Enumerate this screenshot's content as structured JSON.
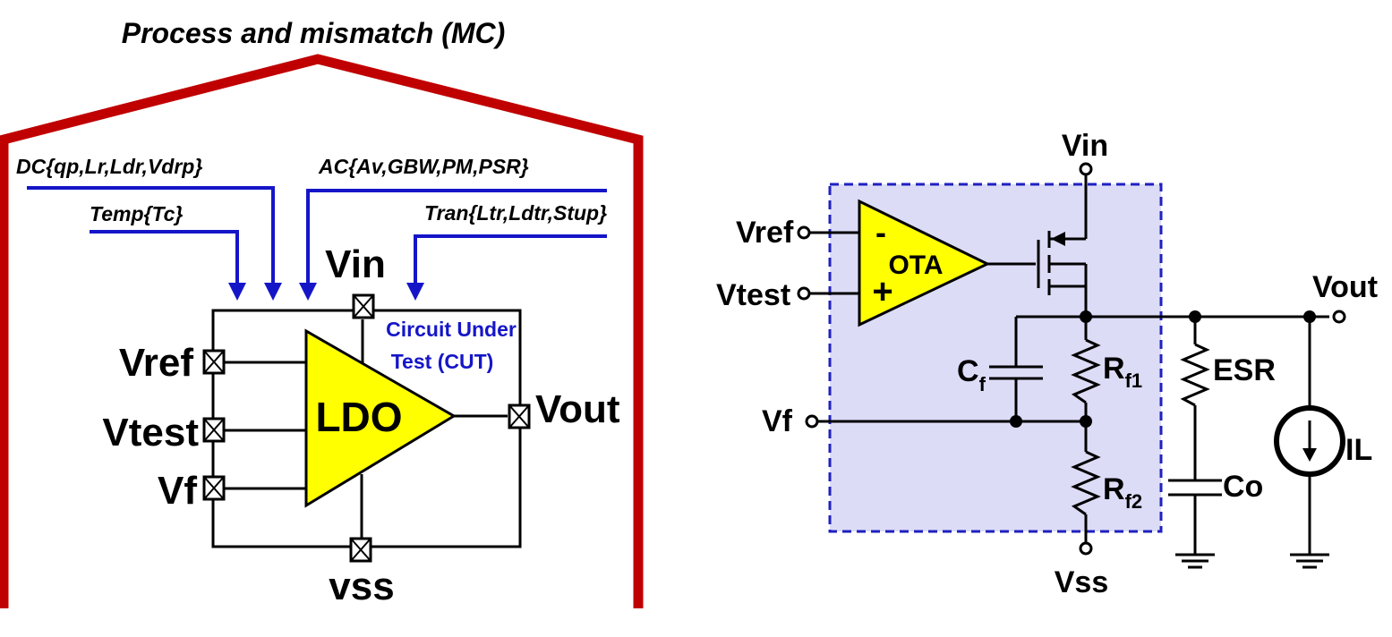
{
  "left_panel": {
    "title": "Process and mismatch (MC)",
    "dc_label": "DC{qp,Lr,Ldr,Vdrp}",
    "temp_label": "Temp{Tc}",
    "ac_label": "AC{Av,GBW,PM,PSR}",
    "tran_label": "Tran{Ltr,Ldtr,Stup}",
    "cut_label_line1": "Circuit Under",
    "cut_label_line2": "Test (CUT)",
    "ldo_label": "LDO",
    "pins": {
      "vin": "Vin",
      "vref": "Vref",
      "vtest": "Vtest",
      "vf": "Vf",
      "vout": "Vout",
      "vss": "vss"
    }
  },
  "right_panel": {
    "vin": "Vin",
    "vref": "Vref",
    "vtest": "Vtest",
    "vf": "Vf",
    "vout": "Vout",
    "vss": "Vss",
    "ota_label": "OTA",
    "ota_minus": "-",
    "ota_plus": "+",
    "cf_main": "C",
    "cf_sub": "f",
    "rf1_main": "R",
    "rf1_sub": "f1",
    "rf2_main": "R",
    "rf2_sub": "f2",
    "esr": "ESR",
    "co": "Co",
    "il": "IL"
  },
  "colors": {
    "frame_red": "#c00000",
    "arrow_blue": "#1515c8",
    "amp_yellow": "#ffff00",
    "cut_fill": "#dcdcf7",
    "cut_border": "#2020c0"
  }
}
